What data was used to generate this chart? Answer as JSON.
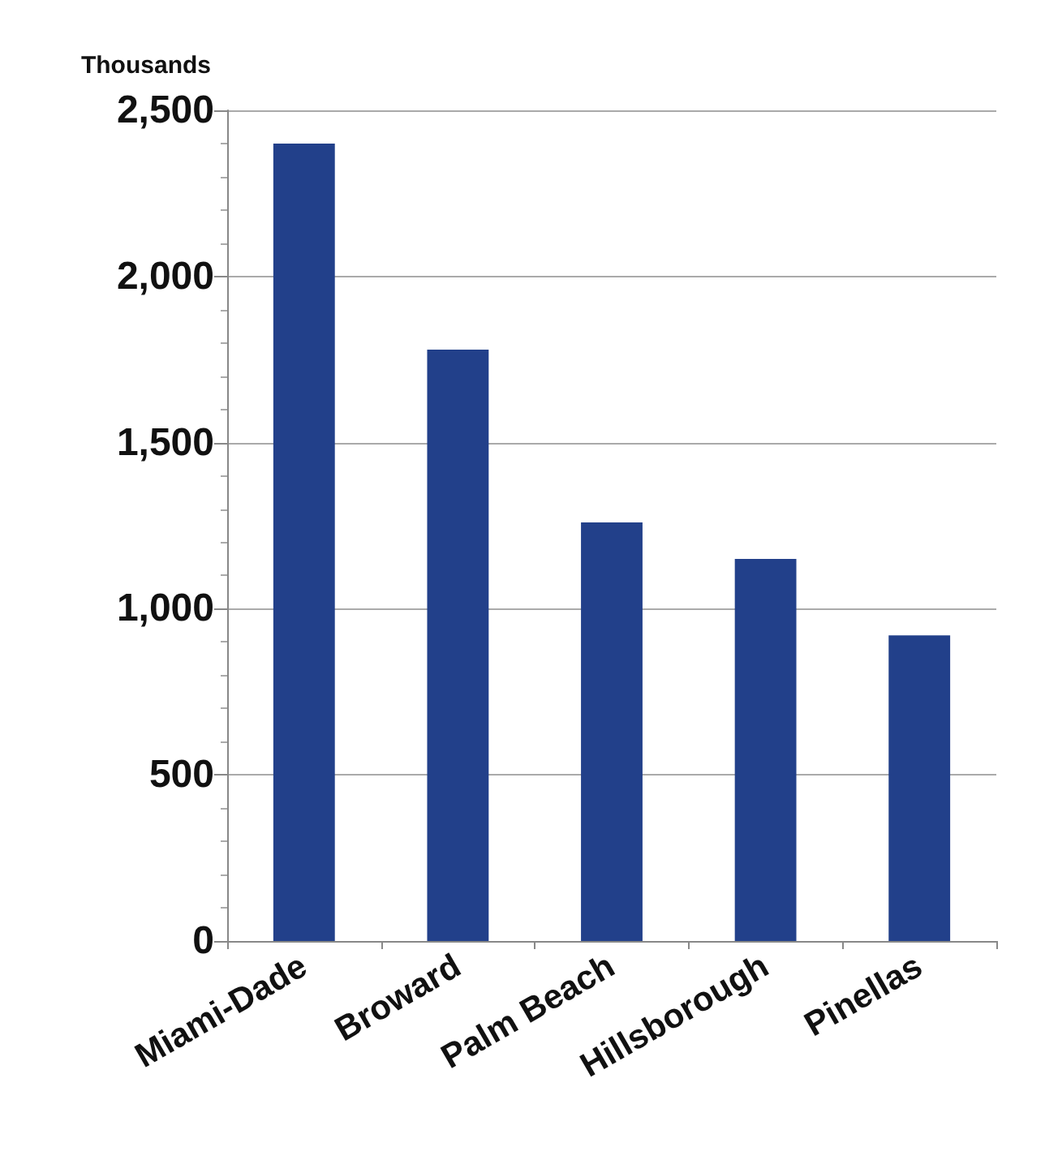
{
  "chart_data": {
    "type": "bar",
    "ylabel": "Thousands",
    "categories": [
      "Miami-Dade",
      "Broward",
      "Palm Beach",
      "Hillsborough",
      "Pinellas"
    ],
    "values": [
      2400,
      1780,
      1260,
      1150,
      920
    ],
    "color": "#22408a",
    "ylim": [
      0,
      2500
    ],
    "yticks": [
      0,
      {
        "value": 500,
        "label": "500"
      },
      {
        "value": 1000,
        "label": "1,000"
      },
      {
        "value": 1500,
        "label": "1,500"
      },
      {
        "value": 2000,
        "label": "2,000"
      },
      {
        "value": 2500,
        "label": "2,500"
      }
    ],
    "grid": "y"
  }
}
